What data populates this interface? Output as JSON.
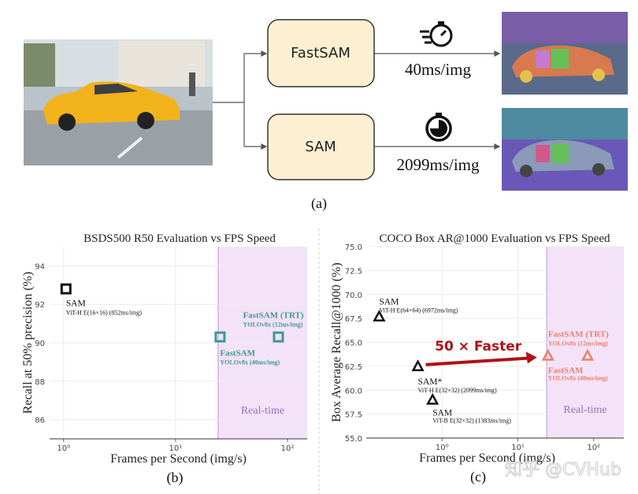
{
  "panel_a": {
    "caption": "(a)",
    "fastsam_label": "FastSAM",
    "sam_label": "SAM",
    "fastsam_time": "40ms/img",
    "sam_time": "2099ms/img",
    "fast_icon": "fast-stopwatch-icon",
    "slow_icon": "stopwatch-icon",
    "box_fill": "#fdf0d2"
  },
  "watermark": "知乎 @CVHub",
  "chart_data": [
    {
      "type": "scatter",
      "caption": "(b)",
      "title": "BSDS500 R50 Evaluation vs FPS Speed",
      "xlabel": "Frames per Second (img/s)",
      "ylabel": "Recall at 50% precision (%)",
      "xscale": "log",
      "xlim": [
        0.75,
        150
      ],
      "ylim": [
        85,
        95
      ],
      "xticks": [
        1,
        10,
        100
      ],
      "xtick_labels": [
        "10⁰",
        "10¹",
        "10²"
      ],
      "yticks": [
        86,
        88,
        90,
        92,
        94
      ],
      "ytick_labels": [
        "86",
        "88",
        "90",
        "92",
        "94"
      ],
      "grid": true,
      "marker": "square",
      "region": {
        "label": "Real-time",
        "x_from": 24,
        "color": "#f4e2f8"
      },
      "points": [
        {
          "name": "SAM",
          "detail": "ViT-H E(16×16) (852ms/img)",
          "x": 1.05,
          "y": 92.8,
          "color": "#111111"
        },
        {
          "name": "FastSAM",
          "detail": "YOLOv8x (40ms/img)",
          "x": 25,
          "y": 90.3,
          "color": "#3a9a96"
        },
        {
          "name": "FastSAM (TRT)",
          "detail": "YOLOv8x (12ms/img)",
          "x": 83,
          "y": 90.3,
          "color": "#3a9a96"
        }
      ]
    },
    {
      "type": "scatter",
      "caption": "(c)",
      "title": "COCO Box AR@1000 Evaluation vs FPS Speed",
      "xlabel": "Frames per Second (img/s)",
      "ylabel": "Box Average Recall@1000 (%)",
      "xscale": "log",
      "xlim": [
        0.1,
        250
      ],
      "ylim": [
        55,
        75
      ],
      "xticks": [
        1,
        10,
        100
      ],
      "xtick_labels": [
        "10⁰",
        "10¹",
        "10²"
      ],
      "yticks": [
        55,
        57.5,
        60,
        62.5,
        65,
        67.5,
        70,
        72.5,
        75
      ],
      "ytick_labels": [
        "55.0",
        "57.5",
        "60.0",
        "62.5",
        "65.0",
        "67.5",
        "70.0",
        "72.5",
        "75.0"
      ],
      "grid": true,
      "marker": "triangle",
      "region": {
        "label": "Real-time",
        "x_from": 24,
        "color": "#f4e2f8"
      },
      "annotation": {
        "text": "50 × Faster",
        "color": "#b01015"
      },
      "points": [
        {
          "name": "SAM",
          "detail": "ViT-H E(64×64) (6972ms/img)",
          "x": 0.148,
          "y": 67.7,
          "color": "#111111"
        },
        {
          "name": "SAM*",
          "detail": "ViT-H E(32×32) (2099ms/img)",
          "x": 0.48,
          "y": 62.5,
          "color": "#111111"
        },
        {
          "name": "SAM",
          "detail": "ViT-B E(32×32) (1383ms/img)",
          "x": 0.75,
          "y": 59.0,
          "color": "#111111"
        },
        {
          "name": "FastSAM",
          "detail": "YOLOv8x (40ms/img)",
          "x": 25,
          "y": 63.6,
          "color": "#e8806a"
        },
        {
          "name": "FastSAM (TRT)",
          "detail": "YOLOv8x (12ms/img)",
          "x": 83,
          "y": 63.6,
          "color": "#e8806a"
        }
      ]
    }
  ]
}
